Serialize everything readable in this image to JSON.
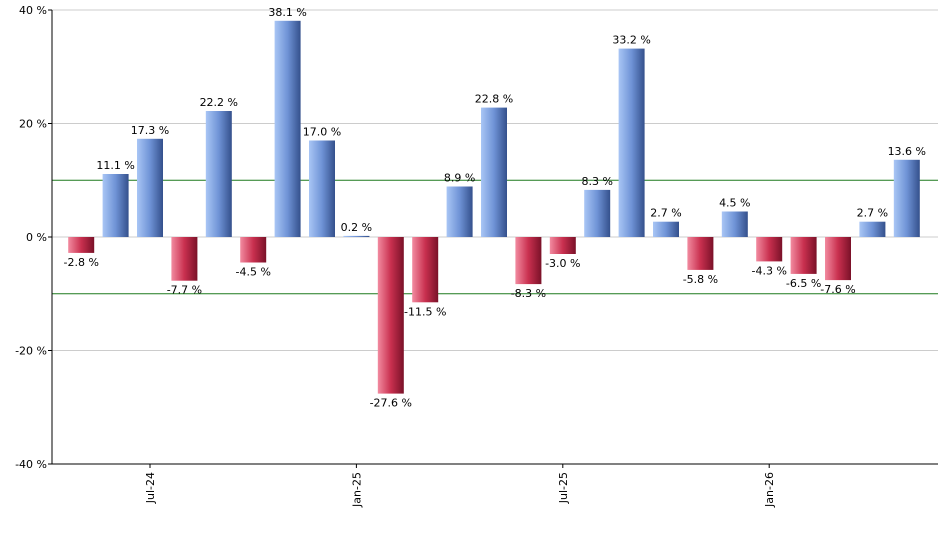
{
  "chart_data": {
    "type": "bar",
    "title": "",
    "xlabel": "",
    "ylabel": "",
    "ylim": [
      -40,
      40
    ],
    "y_ticks": [
      40,
      20,
      0,
      -20,
      -40
    ],
    "y_tick_labels": [
      "40 %",
      "20 %",
      "0 %",
      "-20 %",
      "-40 %"
    ],
    "x_tick_labels": [
      {
        "label": "Jul-24",
        "index": 2
      },
      {
        "label": "Jan-25",
        "index": 8
      },
      {
        "label": "Jul-25",
        "index": 14
      },
      {
        "label": "Jan-26",
        "index": 20
      }
    ],
    "reference_lines": [
      10,
      -10
    ],
    "grid": true,
    "values": [
      -2.8,
      11.1,
      17.3,
      -7.7,
      22.2,
      -4.5,
      38.1,
      17.0,
      0.2,
      -27.6,
      -11.5,
      8.9,
      22.8,
      -8.3,
      -3.0,
      8.3,
      33.2,
      2.7,
      -5.8,
      4.5,
      -4.3,
      -6.5,
      -7.6,
      2.7,
      13.6
    ],
    "data_labels": [
      "-2.8 %",
      "11.1 %",
      "17.3 %",
      "-7.7 %",
      "22.2 %",
      "-4.5 %",
      "38.1 %",
      "17.0 %",
      "0.2 %",
      "-27.6 %",
      "-11.5 %",
      "8.9 %",
      "22.8 %",
      "-8.3 %",
      "-3.0 %",
      "8.3 %",
      "33.2 %",
      "2.7 %",
      "-5.8 %",
      "4.5 %",
      "-4.3 %",
      "-6.5 %",
      "-7.6 %",
      "2.7 %",
      "13.6 %"
    ],
    "colors": {
      "positive": "#6f93d6",
      "negative": "#c9304f",
      "reference_line": "#1f7a1f",
      "grid": "#cccccc",
      "axis": "#000000"
    }
  }
}
